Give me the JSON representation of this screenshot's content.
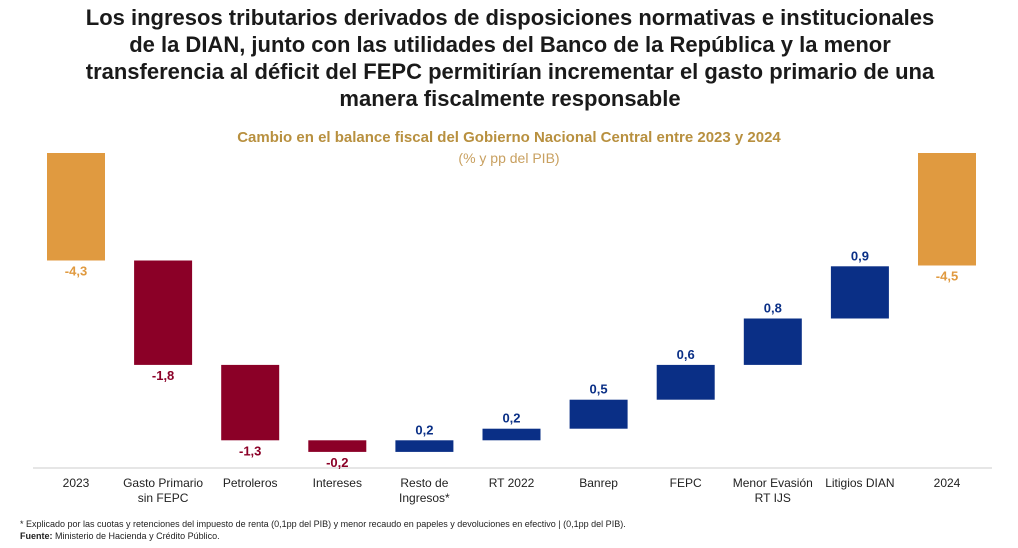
{
  "chart_data": {
    "type": "waterfall",
    "title": "Los ingresos tributarios derivados de disposiciones normativas e institucionales de la DIAN, junto con las utilidades del Banco de la República y la menor transferencia al déficit del FEPC permitirían incrementar el gasto primario de una manera fiscalmente responsable",
    "subtitle": "Cambio en el balance fiscal del Gobierno Nacional Central entre 2023 y 2024",
    "unit_note": "(% y pp del PIB)",
    "categories": [
      "2023",
      "Gasto Primario\nsin FEPC",
      "Petroleros",
      "Intereses",
      "Resto de\nIngresos*",
      "RT 2022",
      "Banrep",
      "FEPC",
      "Menor Evasión\nRT IJS",
      "Litigios DIAN",
      "2024"
    ],
    "values": [
      -4.3,
      -1.8,
      -1.3,
      -0.2,
      0.2,
      0.2,
      0.5,
      0.6,
      0.8,
      0.9,
      -4.5
    ],
    "value_labels": [
      "-4,3",
      "-1,8",
      "-1,3",
      "-0,2",
      "0,2",
      "0,2",
      "0,5",
      "0,6",
      "0,8",
      "0,9",
      "-4,5"
    ],
    "total_color": "#e09a40",
    "decrease_color": "#8b0027",
    "increase_color": "#0a2f86",
    "footnote": "* Explicado por las cuotas y retenciones del impuesto de renta (0,1pp del PIB) y menor recaudo en papeles y devoluciones en efectivo | (0,1pp del PIB).",
    "source_label": "Fuente:",
    "source": "Ministerio de Hacienda y Crédito Público."
  }
}
